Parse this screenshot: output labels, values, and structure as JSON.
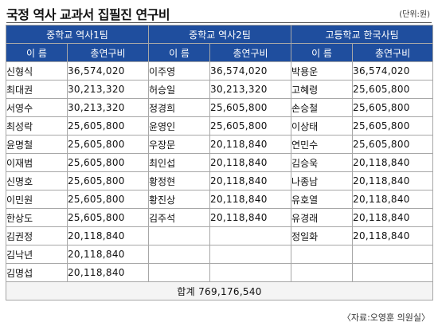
{
  "title": "국정 역사 교과서 집필진 연구비",
  "unit": "(단위:원)",
  "teams": [
    {
      "name": "중학교 역사1팀",
      "col_name": "이  름",
      "col_amount": "총연구비",
      "rows": [
        {
          "name": "신형식",
          "amount": "36,574,020"
        },
        {
          "name": "최대권",
          "amount": "30,213,320"
        },
        {
          "name": "서영수",
          "amount": "30,213,320"
        },
        {
          "name": "최성락",
          "amount": "25,605,800"
        },
        {
          "name": "윤명철",
          "amount": "25,605,800"
        },
        {
          "name": "이재범",
          "amount": "25,605,800"
        },
        {
          "name": "신명호",
          "amount": "25,605,800"
        },
        {
          "name": "이민원",
          "amount": "25,605,800"
        },
        {
          "name": "한상도",
          "amount": "25,605,800"
        },
        {
          "name": "김권정",
          "amount": "20,118,840"
        },
        {
          "name": "김낙년",
          "amount": "20,118,840"
        },
        {
          "name": "김명섭",
          "amount": "20,118,840"
        }
      ]
    },
    {
      "name": "중학교 역사2팀",
      "col_name": "이  름",
      "col_amount": "총연구비",
      "rows": [
        {
          "name": "이주영",
          "amount": "36,574,020"
        },
        {
          "name": "허승일",
          "amount": "30,213,320"
        },
        {
          "name": "정경희",
          "amount": "25,605,800"
        },
        {
          "name": "윤영인",
          "amount": "25,605,800"
        },
        {
          "name": "우장문",
          "amount": "20,118,840"
        },
        {
          "name": "최인섭",
          "amount": "20,118,840"
        },
        {
          "name": "황정현",
          "amount": "20,118,840"
        },
        {
          "name": "황진상",
          "amount": "20,118,840"
        },
        {
          "name": "김주석",
          "amount": "20,118,840"
        },
        {
          "name": "",
          "amount": ""
        },
        {
          "name": "",
          "amount": ""
        },
        {
          "name": "",
          "amount": ""
        }
      ]
    },
    {
      "name": "고등학교 한국사팀",
      "col_name": "이  름",
      "col_amount": "총연구비",
      "rows": [
        {
          "name": "박용운",
          "amount": "36,574,020"
        },
        {
          "name": "고혜령",
          "amount": "25,605,800"
        },
        {
          "name": "손승철",
          "amount": "25,605,800"
        },
        {
          "name": "이상태",
          "amount": "25,605,800"
        },
        {
          "name": "연민수",
          "amount": "25,605,800"
        },
        {
          "name": "김승욱",
          "amount": "20,118,840"
        },
        {
          "name": "나종남",
          "amount": "20,118,840"
        },
        {
          "name": "유호열",
          "amount": "20,118,840"
        },
        {
          "name": "유경래",
          "amount": "20,118,840"
        },
        {
          "name": "정일화",
          "amount": "20,118,840"
        },
        {
          "name": "",
          "amount": ""
        },
        {
          "name": "",
          "amount": ""
        }
      ]
    }
  ],
  "total": "합계 769,176,540",
  "source": "〈자료:오영훈 의원실〉"
}
